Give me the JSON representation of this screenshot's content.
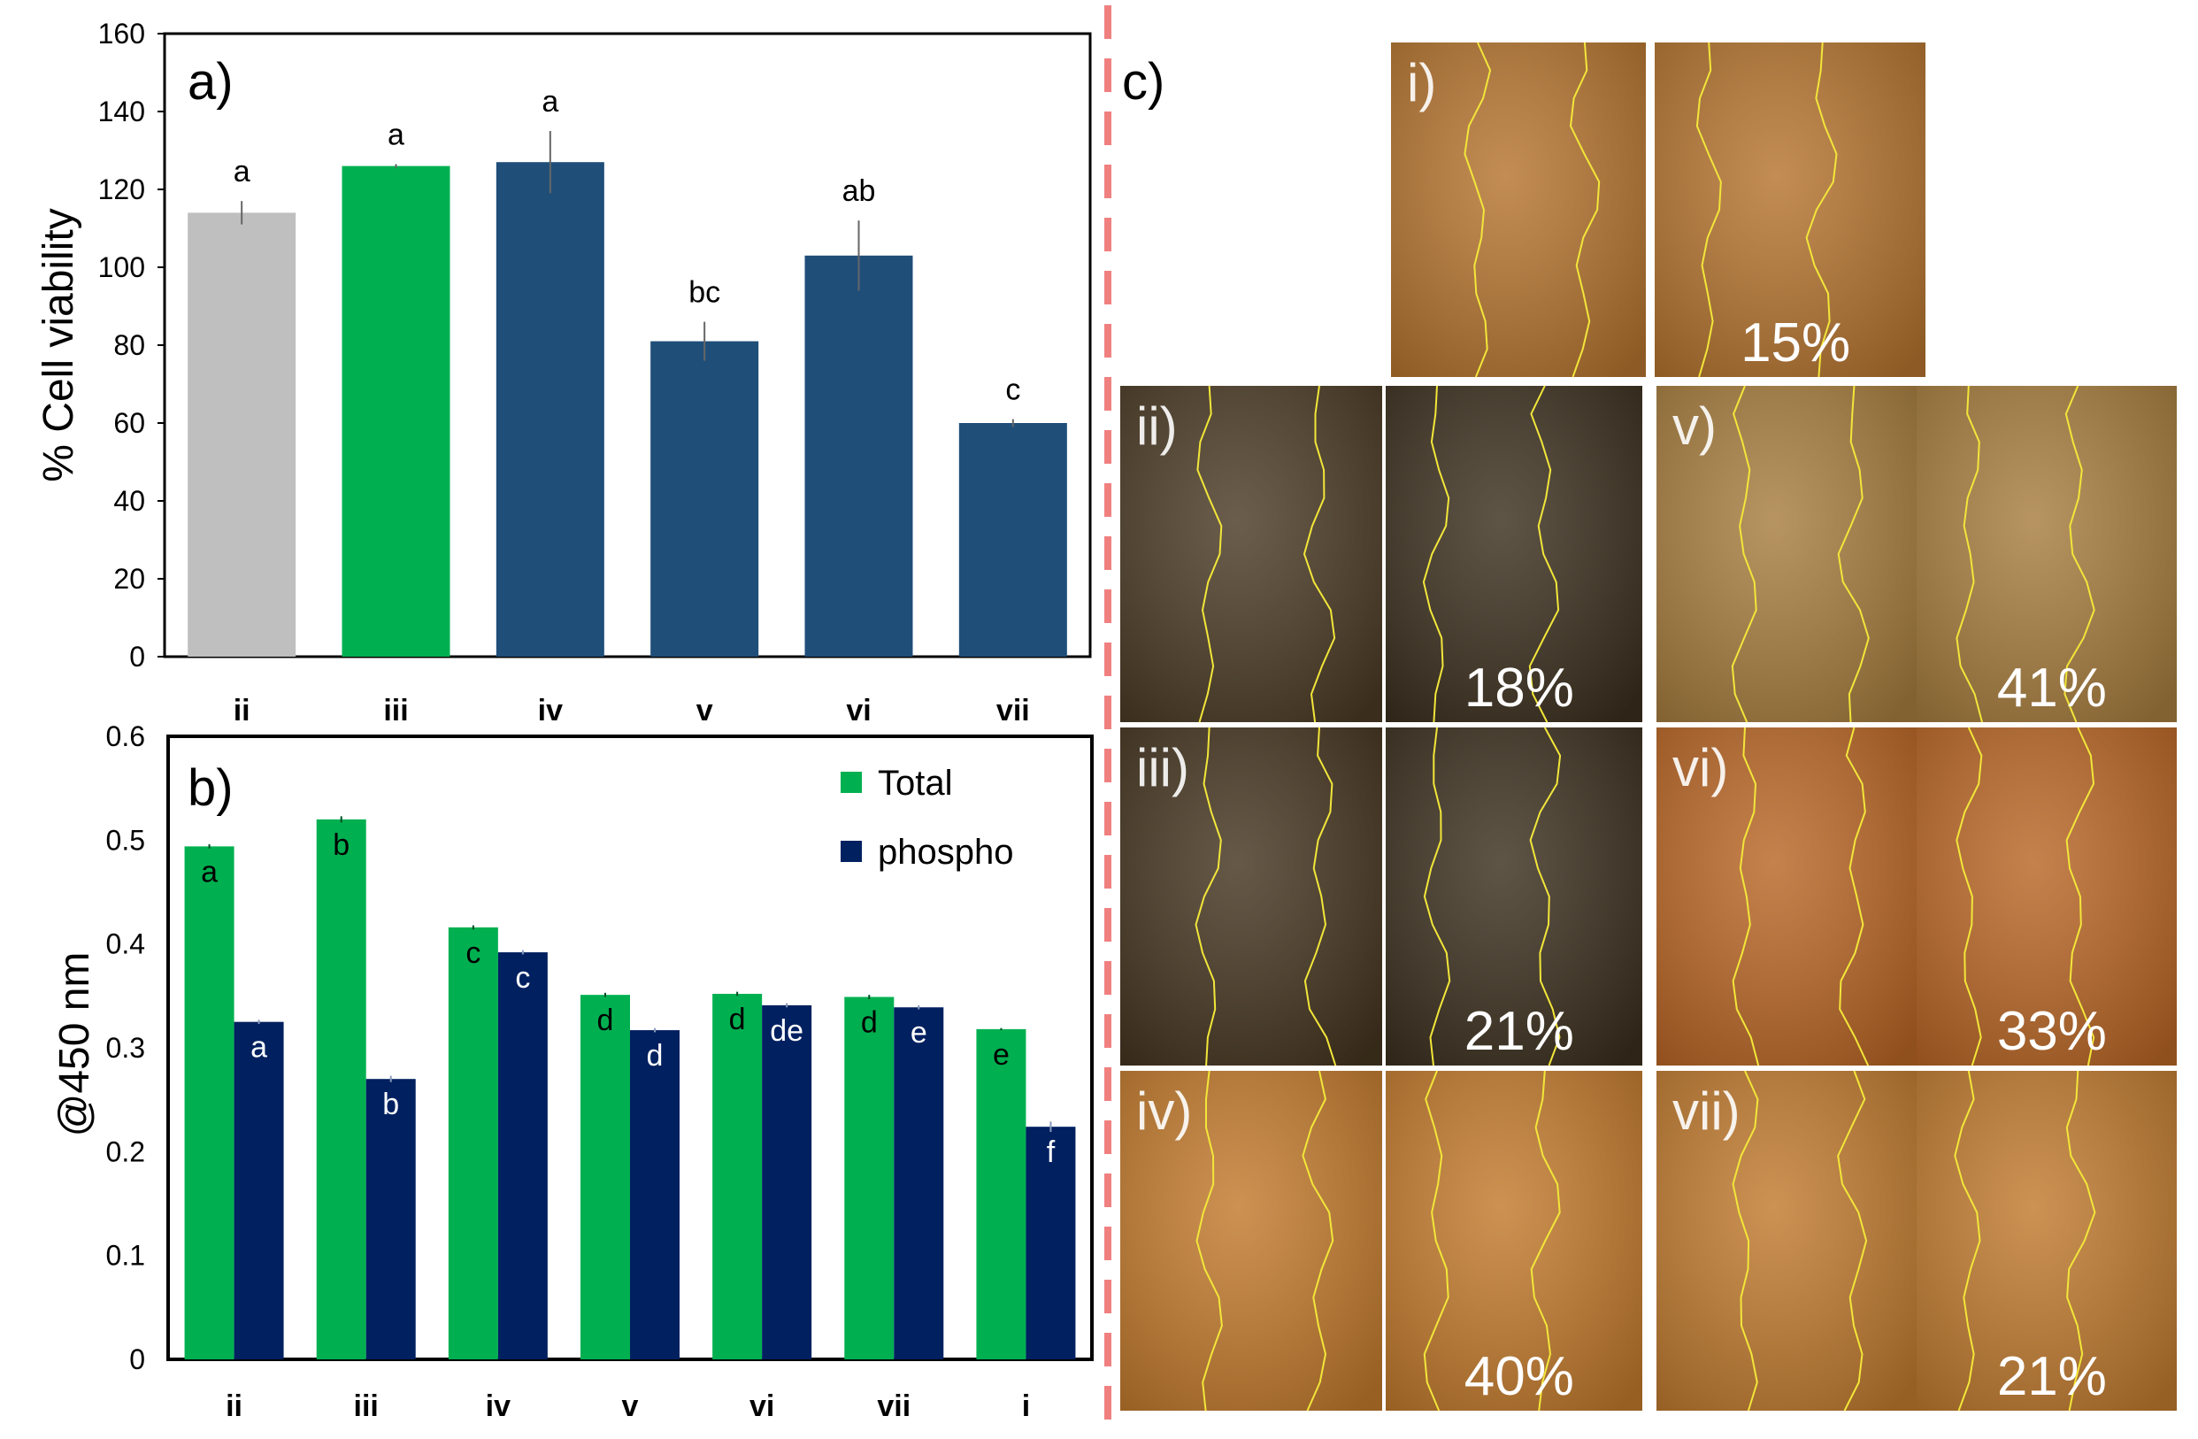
{
  "chart_data": [
    {
      "panel": "a)",
      "type": "bar",
      "ylabel": "% Cell viability",
      "xlabel": "",
      "ylim": [
        0,
        160
      ],
      "yticks": [
        0,
        20,
        40,
        60,
        80,
        100,
        120,
        140,
        160
      ],
      "grid": false,
      "categories": [
        "ii",
        "iii",
        "iv",
        "v",
        "vi",
        "vii"
      ],
      "values": [
        114,
        126,
        127,
        81,
        103,
        60
      ],
      "errors": [
        3,
        0.5,
        8,
        5,
        9,
        1
      ],
      "letters": [
        "a",
        "a",
        "a",
        "bc",
        "ab",
        "c"
      ],
      "colors": [
        "#bfbfbf",
        "#00b050",
        "#1f4e79",
        "#1f4e79",
        "#1f4e79",
        "#1f4e79"
      ]
    },
    {
      "panel": "b)",
      "type": "bar",
      "ylabel": "@450 nm",
      "xlabel": "",
      "ylim": [
        0,
        0.6
      ],
      "yticks": [
        "0",
        "0.1",
        "0.2",
        "0.3",
        "0.4",
        "0.5",
        "0.6"
      ],
      "grid": false,
      "legend_position": "top-right",
      "categories": [
        "ii",
        "iii",
        "iv",
        "v",
        "vi",
        "vii",
        "i"
      ],
      "series": [
        {
          "name": "Total",
          "color": "#00b050",
          "values": [
            0.494,
            0.52,
            0.416,
            0.351,
            0.352,
            0.349,
            0.318
          ],
          "errors": [
            0.002,
            0.003,
            0.002,
            0.002,
            0.002,
            0.002,
            0.001
          ],
          "letters": [
            "a",
            "b",
            "c",
            "d",
            "d",
            "d",
            "e"
          ]
        },
        {
          "name": "phospho",
          "color": "#002060",
          "values": [
            0.325,
            0.27,
            0.392,
            0.317,
            0.341,
            0.339,
            0.224
          ],
          "errors": [
            0.002,
            0.003,
            0.002,
            0.002,
            0.002,
            0.002,
            0.005
          ],
          "letters": [
            "a",
            "b",
            "c",
            "d",
            "de",
            "e",
            "f"
          ]
        }
      ]
    }
  ],
  "panel_c": {
    "label": "c)",
    "tiles": [
      {
        "id": "i",
        "label": "i)",
        "closure": "15%",
        "tone": "#b5742f"
      },
      {
        "id": "ii",
        "label": "ii)",
        "closure": "18%",
        "tone": "#4a3a24"
      },
      {
        "id": "iii",
        "label": "iii)",
        "closure": "21%",
        "tone": "#44341f"
      },
      {
        "id": "iv",
        "label": "iv)",
        "closure": "40%",
        "tone": "#c27a2c"
      },
      {
        "id": "v",
        "label": "v)",
        "closure": "41%",
        "tone": "#a77d3e"
      },
      {
        "id": "vi",
        "label": "vi)",
        "closure": "33%",
        "tone": "#b96625"
      },
      {
        "id": "vii",
        "label": "vii)",
        "closure": "21%",
        "tone": "#c07a2e"
      }
    ]
  },
  "colors": {
    "divider": "#f08080",
    "tile_line": "#f2e63a",
    "axis": "#000000"
  }
}
